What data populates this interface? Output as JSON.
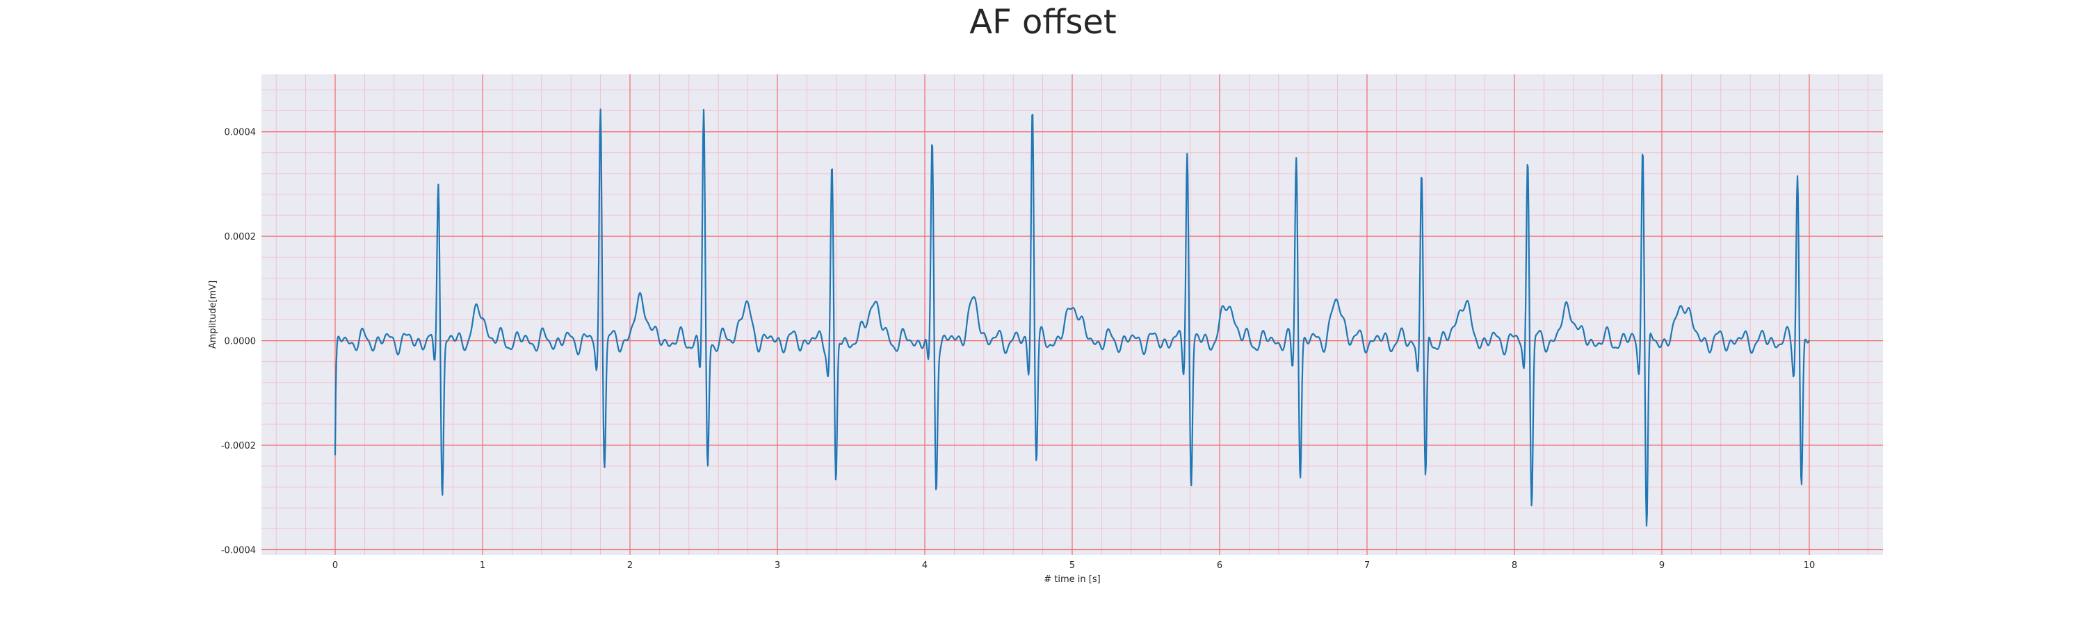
{
  "chart_data": {
    "type": "line",
    "title": "AF offset",
    "xlabel": "# time in [s]",
    "ylabel": "Amplitude[mV]",
    "xlim": [
      -0.5,
      10.5
    ],
    "ylim": [
      -0.00041,
      0.00051
    ],
    "x_ticks": [
      0,
      1,
      2,
      3,
      4,
      5,
      6,
      7,
      8,
      9,
      10
    ],
    "x_tick_labels": [
      "0",
      "1",
      "2",
      "3",
      "4",
      "5",
      "6",
      "7",
      "8",
      "9",
      "10"
    ],
    "y_ticks": [
      -0.0004,
      -0.0002,
      0.0,
      0.0002,
      0.0004
    ],
    "y_tick_labels": [
      "-0.0004",
      "-0.0002",
      "0.0000",
      "0.0002",
      "0.0004"
    ],
    "grid": true,
    "minor_grid": true,
    "legend": "none",
    "colors": {
      "line": "#1f77b4",
      "plot_background": "#eaeaf2",
      "major_grid": "#f26c6c",
      "minor_grid": "#f4b8c4",
      "text": "#262626"
    },
    "series": [
      {
        "beats": [
          {
            "t": 0.7,
            "r": 0.00032,
            "s": -0.00029
          },
          {
            "t": 1.8,
            "r": 0.00045,
            "s": -0.00023
          },
          {
            "t": 2.5,
            "r": 0.00044,
            "s": -0.00025
          },
          {
            "t": 3.37,
            "r": 0.00034,
            "s": -0.00029
          },
          {
            "t": 4.05,
            "r": 0.00038,
            "s": -0.00028
          },
          {
            "t": 4.73,
            "r": 0.00046,
            "s": -0.00023
          },
          {
            "t": 5.78,
            "r": 0.00038,
            "s": -0.00028
          },
          {
            "t": 6.52,
            "r": 0.00036,
            "s": -0.00025
          },
          {
            "t": 7.37,
            "r": 0.00033,
            "s": -0.00028
          },
          {
            "t": 8.09,
            "r": 0.00036,
            "s": -0.00031
          },
          {
            "t": 8.87,
            "r": 0.00039,
            "s": -0.00037
          },
          {
            "t": 9.92,
            "r": 0.00033,
            "s": -0.00028
          }
        ],
        "t_wave_peak": 8e-05,
        "start_value": -0.00023,
        "sample_step": 0.004,
        "x_range": [
          0,
          10
        ]
      }
    ]
  }
}
